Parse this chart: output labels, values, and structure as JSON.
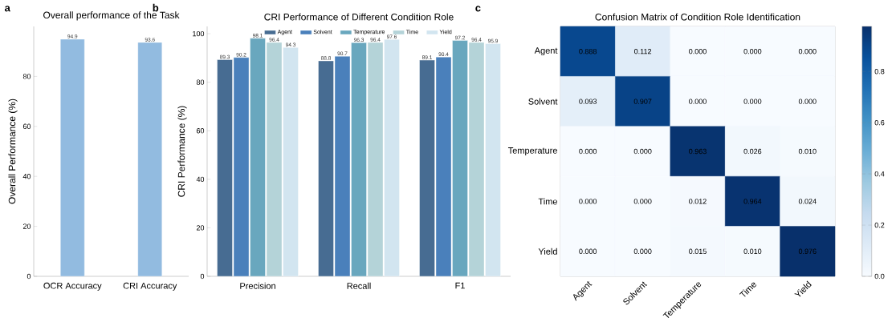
{
  "chart_data": [
    {
      "type": "bar",
      "title": "Overall performance of the Task",
      "ylabel": "Overall Performance (%)",
      "annotations": [
        "a"
      ],
      "categories": [
        "OCR Accuracy",
        "CRI Accuracy"
      ],
      "values": [
        94.9,
        93.6
      ],
      "color": "#92bbe0",
      "data_labels": true,
      "ylim": [
        0,
        100
      ],
      "yticks": [
        0,
        20,
        40,
        60,
        80
      ],
      "grid": false
    },
    {
      "type": "bar",
      "title": "CRI Performance of Different Condition Role",
      "ylabel": "CRI Performance (%)",
      "annotations": [
        "b"
      ],
      "categories": [
        "Precision",
        "Recall",
        "F1"
      ],
      "series": [
        {
          "name": "Agent",
          "color": "#476c92",
          "values": [
            89.3,
            88.8,
            89.1
          ]
        },
        {
          "name": "Solvent",
          "color": "#4a80bb",
          "values": [
            90.2,
            90.7,
            90.4
          ]
        },
        {
          "name": "Temperature",
          "color": "#69a7be",
          "values": [
            98.1,
            96.3,
            97.2
          ]
        },
        {
          "name": "Time",
          "color": "#b4d3d8",
          "values": [
            96.4,
            96.4,
            96.4
          ]
        },
        {
          "name": "Yield",
          "color": "#d2e5f0",
          "values": [
            94.3,
            97.6,
            95.9
          ]
        }
      ],
      "data_labels": true,
      "legend": "top",
      "ylim": [
        0,
        103
      ],
      "yticks": [
        0,
        20,
        40,
        60,
        80,
        100
      ],
      "grid": false
    },
    {
      "type": "heatmap",
      "title": "Confusion Matrix of Condition Role Identification",
      "annotations": [
        "c"
      ],
      "categories": [
        "Agent",
        "Solvent",
        "Temperature",
        "Time",
        "Yield"
      ],
      "y_categories": [
        "Agent",
        "Solvent",
        "Temperature",
        "Time",
        "Yield"
      ],
      "cells": [
        [
          0.888,
          0.112,
          0.0,
          0.0,
          0.0
        ],
        [
          0.093,
          0.907,
          0.0,
          0.0,
          0.0
        ],
        [
          0.0,
          0.0,
          0.963,
          0.026,
          0.01
        ],
        [
          0.0,
          0.0,
          0.012,
          0.964,
          0.024
        ],
        [
          0.0,
          0.0,
          0.015,
          0.01,
          0.976
        ]
      ],
      "cell_labels": [
        [
          "0.888",
          "0.112",
          "0.000",
          "0.000",
          "0.000"
        ],
        [
          "0.093",
          "0.907",
          "0.000",
          "0.000",
          "0.000"
        ],
        [
          "0.000",
          "0.000",
          "0.963",
          "0.026",
          "0.010"
        ],
        [
          "0.000",
          "0.000",
          "0.012",
          "0.964",
          "0.024"
        ],
        [
          "0.000",
          "0.000",
          "0.015",
          "0.010",
          "0.976"
        ]
      ],
      "clim": [
        0,
        0.976
      ],
      "cticks": [
        {
          "value": 0,
          "label": "0.0"
        },
        {
          "value": 0.2,
          "label": "0.2"
        },
        {
          "value": 0.4,
          "label": "0.4"
        },
        {
          "value": 0.6,
          "label": "0.6"
        },
        {
          "value": 0.8,
          "label": "0.8"
        }
      ]
    }
  ]
}
